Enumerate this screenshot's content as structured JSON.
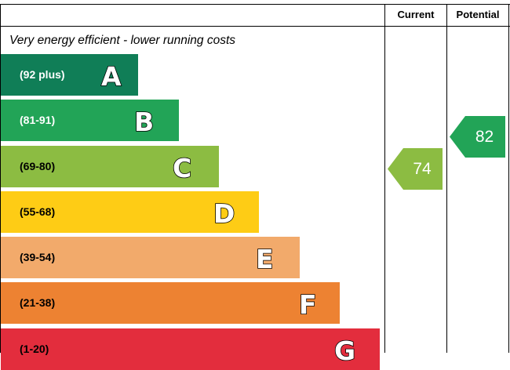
{
  "chart_data": {
    "type": "energy-rating",
    "columns": [
      "Current",
      "Potential"
    ],
    "top_note": "Very energy efficient - lower running costs",
    "bands": [
      {
        "range": "(92 plus)",
        "letter": "A",
        "color": "#107e57",
        "text_color": "#ffffff"
      },
      {
        "range": "(81-91)",
        "letter": "B",
        "color": "#22a457",
        "text_color": "#ffffff"
      },
      {
        "range": "(69-80)",
        "letter": "C",
        "color": "#8cbc42",
        "text_color": "#000000"
      },
      {
        "range": "(55-68)",
        "letter": "D",
        "color": "#fecc15",
        "text_color": "#000000"
      },
      {
        "range": "(39-54)",
        "letter": "E",
        "color": "#f2aa6b",
        "text_color": "#000000"
      },
      {
        "range": "(21-38)",
        "letter": "F",
        "color": "#ed8232",
        "text_color": "#000000"
      },
      {
        "range": "(1-20)",
        "letter": "G",
        "color": "#e32d3d",
        "text_color": "#000000"
      }
    ],
    "ratings": {
      "current": {
        "value": 74,
        "band": "C",
        "color": "#8cbc42"
      },
      "potential": {
        "value": 82,
        "band": "B",
        "color": "#22a457"
      }
    }
  }
}
